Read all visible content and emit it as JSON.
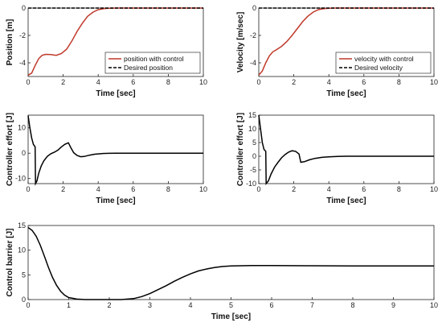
{
  "chart_data": [
    {
      "type": "line",
      "title": "",
      "xlabel": "Time [sec]",
      "ylabel": "Position [m]",
      "xlim": [
        0,
        10
      ],
      "ylim": [
        -5,
        0
      ],
      "xticks": [
        0,
        2,
        4,
        6,
        8,
        10
      ],
      "yticks": [
        0,
        -2,
        -4
      ],
      "legend": "bottom-right",
      "series": [
        {
          "name": "position with control",
          "color": "#c0392b",
          "dash": "solid",
          "x": [
            0,
            0.2,
            0.4,
            0.6,
            0.8,
            1.0,
            1.3,
            1.6,
            1.9,
            2.2,
            2.5,
            2.8,
            3.1,
            3.4,
            3.7,
            4.0,
            4.3,
            4.6,
            5.0,
            5.5,
            6,
            7,
            8,
            9,
            10
          ],
          "y": [
            -4.9,
            -4.75,
            -4.2,
            -3.7,
            -3.45,
            -3.38,
            -3.4,
            -3.45,
            -3.32,
            -3.0,
            -2.4,
            -1.7,
            -1.1,
            -0.6,
            -0.3,
            -0.12,
            -0.05,
            -0.02,
            0,
            0,
            0,
            0,
            0,
            0,
            0
          ]
        },
        {
          "name": "Desired position",
          "color": "#000000",
          "dash": "dashed",
          "x": [
            0,
            10
          ],
          "y": [
            0,
            0
          ]
        }
      ]
    },
    {
      "type": "line",
      "title": "",
      "xlabel": "Time [sec]",
      "ylabel": "Velocity [m/sec]",
      "xlim": [
        0,
        10
      ],
      "ylim": [
        -5,
        0
      ],
      "xticks": [
        0,
        2,
        4,
        6,
        8,
        10
      ],
      "yticks": [
        0,
        -2,
        -4
      ],
      "legend": "bottom-right",
      "series": [
        {
          "name": "velocity with control",
          "color": "#c0392b",
          "dash": "solid",
          "x": [
            0,
            0.2,
            0.4,
            0.6,
            0.8,
            1.0,
            1.3,
            1.6,
            1.9,
            2.2,
            2.5,
            2.8,
            3.1,
            3.4,
            3.7,
            4.0,
            4.3,
            4.6,
            5.0,
            6,
            7,
            8,
            9,
            10
          ],
          "y": [
            -4.9,
            -4.6,
            -4.0,
            -3.5,
            -3.2,
            -3.05,
            -2.8,
            -2.45,
            -2.0,
            -1.5,
            -1.0,
            -0.6,
            -0.3,
            -0.12,
            -0.05,
            -0.02,
            0,
            0,
            0,
            0,
            0,
            0,
            0,
            0
          ]
        },
        {
          "name": "Desired velocity",
          "color": "#000000",
          "dash": "dashed",
          "x": [
            0,
            10
          ],
          "y": [
            0,
            0
          ]
        }
      ]
    },
    {
      "type": "line",
      "title": "",
      "xlabel": "Time [sec]",
      "ylabel": "Controller effort [J]",
      "xlim": [
        0,
        10
      ],
      "ylim": [
        -12,
        15
      ],
      "xticks": [
        0,
        2,
        4,
        6,
        8,
        10
      ],
      "yticks": [
        10,
        0,
        -10
      ],
      "series": [
        {
          "name": "",
          "color": "#000000",
          "dash": "solid",
          "x": [
            0,
            0.1,
            0.2,
            0.3,
            0.4,
            0.42,
            0.5,
            0.6,
            0.75,
            0.9,
            1.1,
            1.3,
            1.5,
            1.7,
            1.9,
            2.1,
            2.3,
            2.45,
            2.6,
            2.8,
            3.0,
            3.2,
            3.5,
            3.8,
            4.2,
            4.6,
            5.0,
            6,
            7,
            8,
            9,
            10
          ],
          "y": [
            14.8,
            10,
            6,
            3.5,
            2.5,
            -12,
            -11,
            -8,
            -5,
            -3,
            -1.2,
            -0.2,
            0.4,
            1.2,
            2.5,
            3.5,
            4.1,
            2,
            0.2,
            -0.9,
            -1.4,
            -1.3,
            -0.8,
            -0.4,
            -0.15,
            -0.05,
            0,
            0,
            0,
            0,
            0,
            0
          ]
        }
      ]
    },
    {
      "type": "line",
      "title": "",
      "xlabel": "Time [sec]",
      "ylabel": "Controller effort [J]",
      "xlim": [
        0,
        10
      ],
      "ylim": [
        -10,
        15
      ],
      "xticks": [
        0,
        2,
        4,
        6,
        8,
        10
      ],
      "yticks": [
        15,
        10,
        5,
        0,
        -5,
        -10
      ],
      "series": [
        {
          "name": "",
          "color": "#000000",
          "dash": "solid",
          "x": [
            0,
            0.1,
            0.2,
            0.3,
            0.4,
            0.42,
            0.55,
            0.7,
            0.9,
            1.1,
            1.3,
            1.5,
            1.7,
            1.9,
            2.1,
            2.3,
            2.4,
            2.6,
            2.9,
            3.2,
            3.6,
            4.0,
            4.5,
            5.0,
            6,
            7,
            8,
            9,
            10
          ],
          "y": [
            15,
            10,
            5,
            2.5,
            1.8,
            -10,
            -9,
            -6.5,
            -4,
            -2.2,
            -0.6,
            0.6,
            1.5,
            2.0,
            1.8,
            0.8,
            -2.2,
            -2.0,
            -1.3,
            -0.8,
            -0.4,
            -0.2,
            -0.05,
            0,
            0,
            0,
            0,
            0,
            0
          ]
        }
      ]
    },
    {
      "type": "line",
      "title": "",
      "xlabel": "Time [sec]",
      "ylabel": "Control barrier [J]",
      "xlim": [
        0,
        10
      ],
      "ylim": [
        0,
        15
      ],
      "xticks": [
        0,
        1,
        2,
        3,
        4,
        5,
        6,
        7,
        8,
        9,
        10
      ],
      "yticks": [
        15,
        10,
        5,
        0
      ],
      "series": [
        {
          "name": "",
          "color": "#000000",
          "dash": "solid",
          "x": [
            0,
            0.1,
            0.2,
            0.3,
            0.4,
            0.5,
            0.6,
            0.7,
            0.8,
            0.9,
            1.0,
            1.2,
            1.4,
            1.7,
            2.0,
            2.3,
            2.6,
            2.8,
            3.0,
            3.2,
            3.4,
            3.6,
            3.8,
            4.0,
            4.2,
            4.4,
            4.6,
            4.8,
            5.0,
            5.5,
            6,
            7,
            8,
            9,
            10
          ],
          "y": [
            14.6,
            14.0,
            12.8,
            11.0,
            8.8,
            6.5,
            4.5,
            2.9,
            1.7,
            0.9,
            0.4,
            0.1,
            0,
            0,
            0,
            0,
            0.2,
            0.6,
            1.2,
            2.0,
            2.8,
            3.7,
            4.5,
            5.2,
            5.8,
            6.2,
            6.5,
            6.7,
            6.8,
            6.9,
            6.9,
            6.85,
            6.8,
            6.8,
            6.8
          ]
        }
      ]
    }
  ]
}
